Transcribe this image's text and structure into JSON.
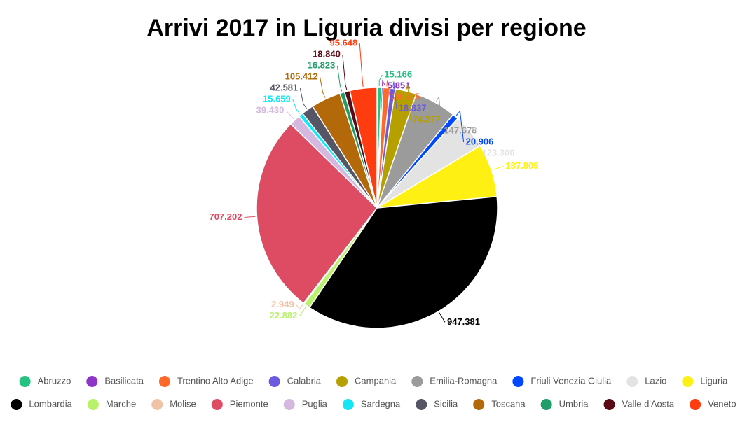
{
  "chart_data": {
    "type": "pie",
    "title": "Arrivi 2017 in Liguria divisi per regione",
    "categories": [
      "Abruzzo",
      "Basilicata",
      "Trentino Alto Adige",
      "Calabria",
      "Campania",
      "Emilia-Romagna",
      "Friuli Venezia Giulia",
      "Lazio",
      "Liguria",
      "Lombardia",
      "Marche",
      "Molise",
      "Piemonte",
      "Puglia",
      "Sardegna",
      "Sicilia",
      "Toscana",
      "Umbria",
      "Valle d'Aosta",
      "Veneto"
    ],
    "values": [
      15166,
      5851,
      24625,
      18837,
      74277,
      147678,
      20906,
      123300,
      187809,
      947381,
      22882,
      2949,
      707202,
      39430,
      15659,
      42581,
      105412,
      16823,
      18840,
      95648
    ],
    "value_labels": [
      "15.166",
      "5.851",
      "24.625",
      "18.837",
      "74.277",
      "147.678",
      "20.906",
      "123.300",
      "187.809",
      "947.381",
      "22.882",
      "2.949",
      "707.202",
      "39.430",
      "15.659",
      "42.581",
      "105.412",
      "16.823",
      "18.840",
      "95.648"
    ],
    "colors": [
      "#26c281",
      "#8e35c8",
      "#ff6a2a",
      "#6a5be0",
      "#b5a000",
      "#9b9b9b",
      "#0048ff",
      "#e3e3e3",
      "#fff014",
      "#000000",
      "#b9f26a",
      "#f0c3a6",
      "#dd4c63",
      "#d5b8e0",
      "#14e6f5",
      "#555566",
      "#b3690a",
      "#209e6a",
      "#5a0a14",
      "#ff3c0f"
    ]
  }
}
